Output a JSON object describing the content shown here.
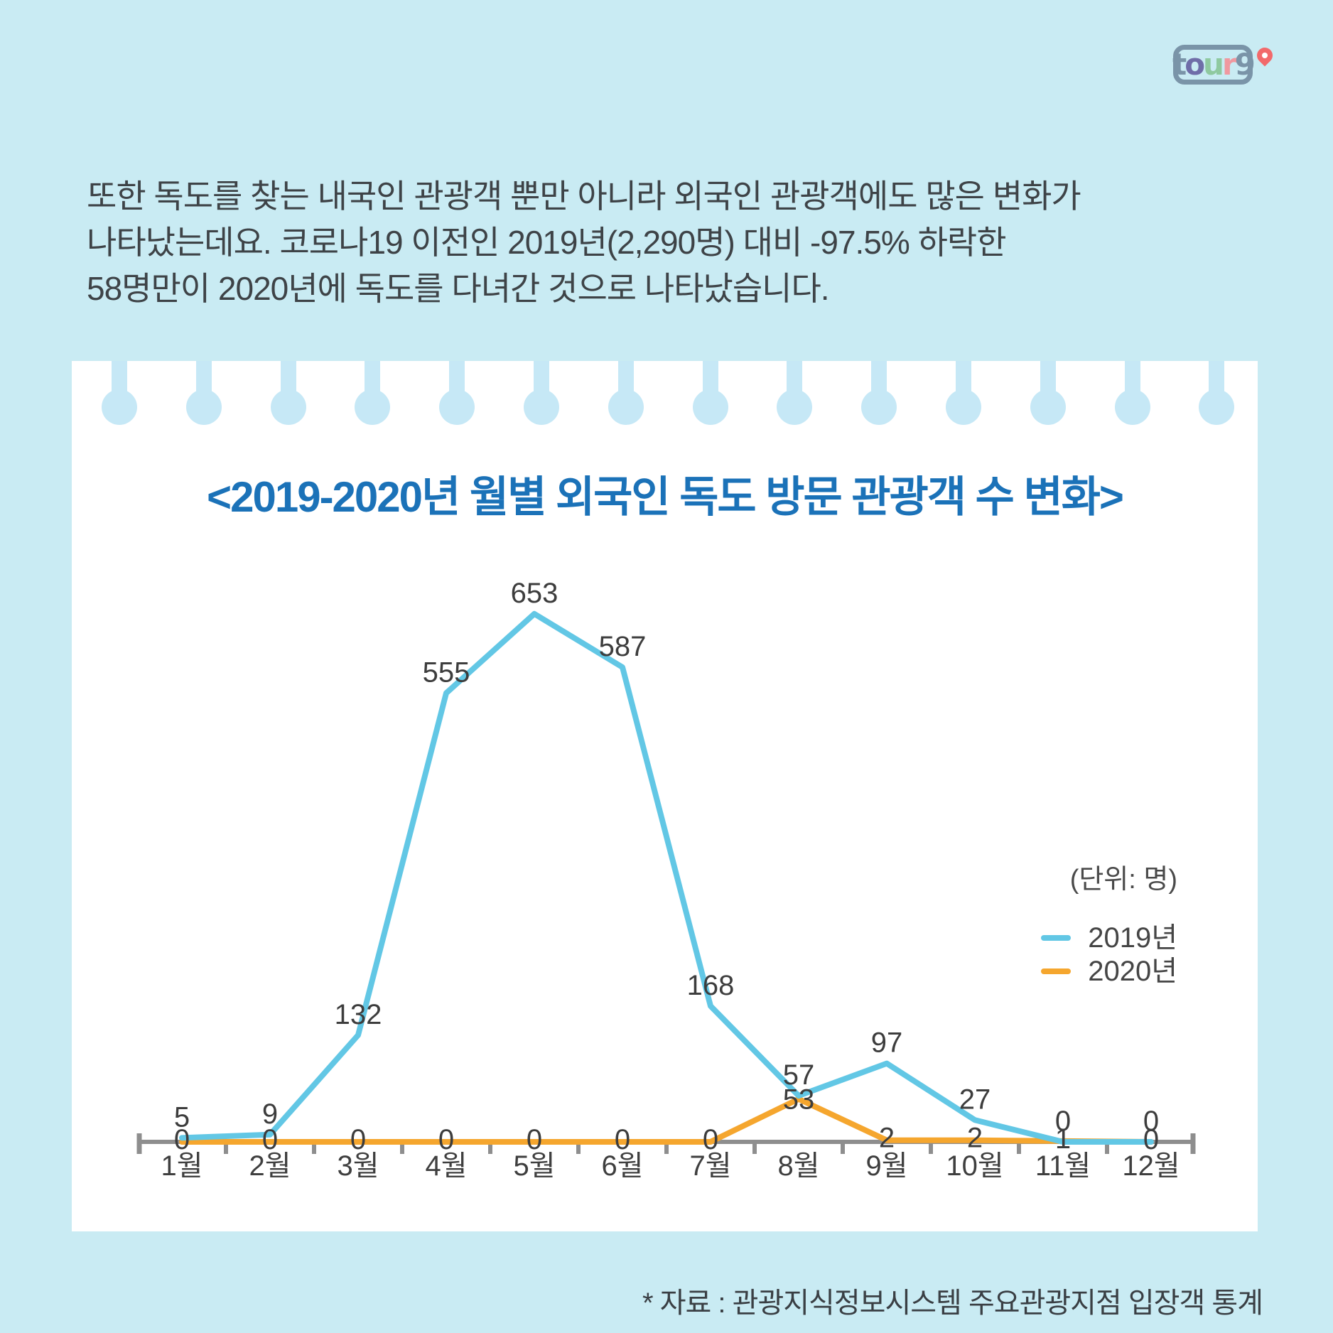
{
  "logo": {
    "name": "tour9",
    "letters": [
      {
        "ch": "t",
        "color": "#7a94a8"
      },
      {
        "ch": "o",
        "color": "#6f6da8"
      },
      {
        "ch": "u",
        "color": "#8fc9a0"
      },
      {
        "ch": "r",
        "color": "#f0989f"
      },
      {
        "ch": "9",
        "color": "#7a94a8"
      }
    ],
    "frame_color": "#7a94a8",
    "pin_color": "#f2696b"
  },
  "intro": {
    "lines": [
      "또한 독도를 찾는 내국인 관광객 뿐만 아니라 외국인 관광객에도 많은 변화가",
      "나타났는데요. 코로나19 이전인 2019년(2,290명) 대비 -97.5% 하락한",
      "58명만이 2020년에 독도를 다녀간 것으로 나타났습니다."
    ]
  },
  "chart_data": {
    "type": "line",
    "title": "<2019-2020년 월별 외국인 독도 방문 관광객 수 변화>",
    "unit_label": "(단위: 명)",
    "categories": [
      "1월",
      "2월",
      "3월",
      "4월",
      "5월",
      "6월",
      "7월",
      "8월",
      "9월",
      "10월",
      "11월",
      "12월"
    ],
    "series": [
      {
        "name": "2019년",
        "color": "#62c7e5",
        "values": [
          5,
          9,
          132,
          555,
          653,
          587,
          168,
          57,
          97,
          27,
          0,
          0
        ]
      },
      {
        "name": "2020년",
        "color": "#f5a62e",
        "values": [
          0,
          0,
          0,
          0,
          0,
          0,
          0,
          53,
          2,
          2,
          1,
          0
        ]
      }
    ],
    "ylim": [
      0,
      700
    ],
    "grid": false,
    "legend_position": "right",
    "axis_color": "#8e8e8e",
    "label_color": "#3d3d3d",
    "tick_label_color": "#3f3f3f"
  },
  "footer": {
    "source_note": "* 자료 : 관광지식정보시스템 주요관광지점 입장객 통계"
  },
  "colors": {
    "background": "#c9ebf3",
    "panel": "#ffffff",
    "paper_drip": "#c6e8f6",
    "title_blue": "#1b72b8",
    "body_text": "#3e4347"
  }
}
